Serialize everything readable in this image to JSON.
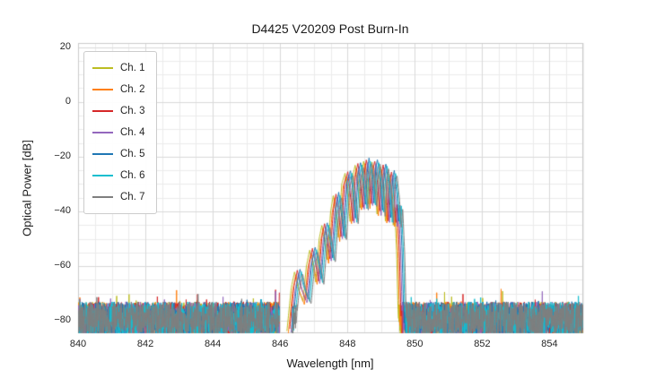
{
  "chart_data": {
    "type": "line",
    "title": "D4425 V20209 Post Burn-In",
    "xlabel": "Wavelength [nm]",
    "ylabel": "Optical Power [dB]",
    "xlim": [
      840,
      855
    ],
    "ylim": [
      -84.5,
      21.5
    ],
    "grid": true,
    "legend_position": "upper left",
    "xticks": {
      "values": [
        840,
        842,
        844,
        846,
        848,
        850,
        852,
        854
      ],
      "labels": [
        "840",
        "842",
        "844",
        "846",
        "848",
        "850",
        "852",
        "854"
      ]
    },
    "yticks": {
      "values": [
        20,
        0,
        -20,
        -40,
        -60,
        -80
      ],
      "labels": [
        "20",
        "0",
        "−20",
        "−40",
        "−60",
        "−80"
      ]
    },
    "minor_grid_step_x_nm": 0.5,
    "minor_grid_step_y_dB": 5,
    "noise_floor_dB": -79.5,
    "noise_peak_to_peak_dB": 13,
    "gap_nm": [
      845.98,
      846.36
    ],
    "signal_envelope": [
      [
        846.32,
        -84
      ],
      [
        846.45,
        -68
      ],
      [
        846.55,
        -62
      ],
      [
        846.65,
        -68
      ],
      [
        846.8,
        -73
      ],
      [
        846.9,
        -60
      ],
      [
        847.0,
        -54
      ],
      [
        847.1,
        -60
      ],
      [
        847.18,
        -66
      ],
      [
        847.28,
        -50
      ],
      [
        847.36,
        -45
      ],
      [
        847.45,
        -52
      ],
      [
        847.52,
        -58
      ],
      [
        847.62,
        -40
      ],
      [
        847.7,
        -34
      ],
      [
        847.78,
        -42
      ],
      [
        847.85,
        -50
      ],
      [
        847.95,
        -30
      ],
      [
        848.05,
        -26
      ],
      [
        848.12,
        -34
      ],
      [
        848.2,
        -44
      ],
      [
        848.28,
        -27
      ],
      [
        848.35,
        -23
      ],
      [
        848.42,
        -30
      ],
      [
        848.5,
        -39
      ],
      [
        848.55,
        -26
      ],
      [
        848.6,
        -21.5
      ],
      [
        848.68,
        -28
      ],
      [
        848.75,
        -38
      ],
      [
        848.8,
        -25
      ],
      [
        848.85,
        -22
      ],
      [
        848.93,
        -30
      ],
      [
        849.0,
        -41
      ],
      [
        849.05,
        -27
      ],
      [
        849.1,
        -23.5
      ],
      [
        849.18,
        -31
      ],
      [
        849.25,
        -44
      ],
      [
        849.3,
        -29
      ],
      [
        849.35,
        -26
      ],
      [
        849.42,
        -34
      ],
      [
        849.48,
        -45
      ],
      [
        849.52,
        -38
      ],
      [
        849.58,
        -55
      ],
      [
        849.62,
        -75
      ],
      [
        849.65,
        -84
      ]
    ],
    "series": [
      {
        "name": "Ch. 1",
        "color": "#bcbd22",
        "offset_nm": -0.12,
        "db_offset": 0.0
      },
      {
        "name": "Ch. 2",
        "color": "#ff7f0e",
        "offset_nm": -0.08,
        "db_offset": -1.0
      },
      {
        "name": "Ch. 3",
        "color": "#d62728",
        "offset_nm": -0.04,
        "db_offset": 0.5
      },
      {
        "name": "Ch. 4",
        "color": "#9467bd",
        "offset_nm": 0.0,
        "db_offset": -0.5
      },
      {
        "name": "Ch. 5",
        "color": "#1f77b4",
        "offset_nm": 0.04,
        "db_offset": 1.0
      },
      {
        "name": "Ch. 6",
        "color": "#17becf",
        "offset_nm": 0.08,
        "db_offset": 0.0
      },
      {
        "name": "Ch. 7",
        "color": "#7f7f7f",
        "offset_nm": 0.12,
        "db_offset": -0.8
      }
    ],
    "grid_minor_color": "#ebebeb",
    "grid_major_color": "#d9d9d9",
    "plot_border_color": "#cccccc"
  }
}
